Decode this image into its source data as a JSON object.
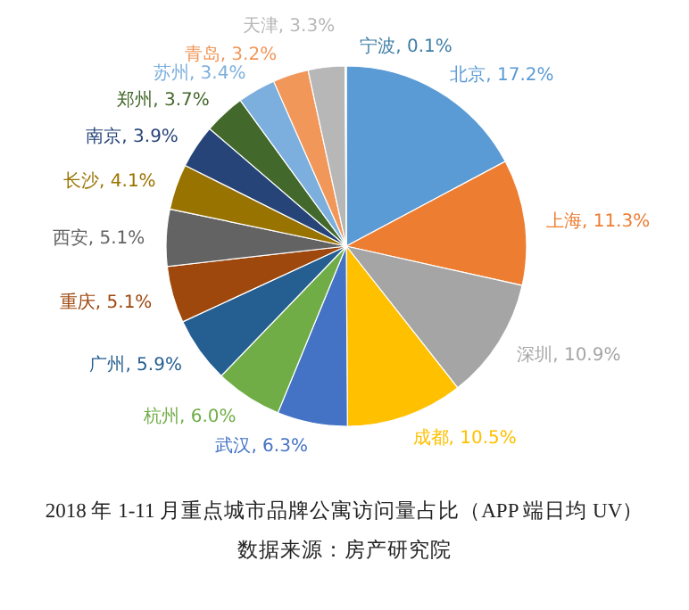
{
  "chart_data": {
    "type": "pie",
    "title": "2018 年 1-11 月重点城市品牌公寓访问量占比（APP 端日均 UV）",
    "annotations": [
      "数据来源：房产研究院"
    ],
    "categories": [
      "北京",
      "上海",
      "深圳",
      "成都",
      "武汉",
      "杭州",
      "广州",
      "重庆",
      "西安",
      "长沙",
      "南京",
      "郑州",
      "苏州",
      "青岛",
      "天津",
      "宁波"
    ],
    "values": [
      17.2,
      11.3,
      10.9,
      10.5,
      6.3,
      6.0,
      5.9,
      5.1,
      5.1,
      4.1,
      3.9,
      3.7,
      3.4,
      3.2,
      3.3,
      0.1
    ],
    "value_labels": [
      ", 17.2%",
      ", 11.3%",
      ", 10.9%",
      ", 10.5%",
      ", 6.3%",
      ", 6.0%",
      ", 5.9%",
      ", 5.1%",
      ", 5.1%",
      ", 4.1%",
      ", 3.9%",
      ", 3.7%",
      ", 3.4%",
      ", 3.2%",
      ", 3.3%",
      ", 0.1%"
    ],
    "colors": [
      "#5b9bd5",
      "#ed7d31",
      "#a5a5a5",
      "#ffc000",
      "#4472c4",
      "#70ad47",
      "#255e91",
      "#9e480e",
      "#636363",
      "#997300",
      "#264478",
      "#43682b",
      "#7cafdd",
      "#f1975a",
      "#b7b7b7",
      "#ffcd33"
    ]
  }
}
